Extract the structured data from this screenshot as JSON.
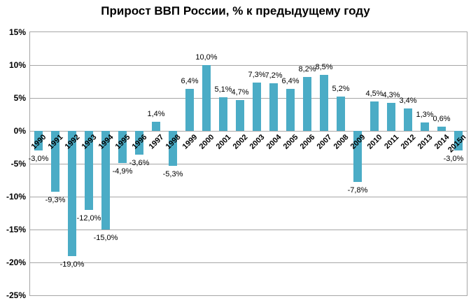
{
  "chart_data": {
    "type": "bar",
    "title": "Прирост ВВП России, % к предыдущему году",
    "categories": [
      "1990",
      "1991",
      "1992",
      "1993",
      "1994",
      "1995",
      "1996",
      "1997",
      "1998",
      "1999",
      "2000",
      "2001",
      "2002",
      "2003",
      "2004",
      "2005",
      "2006",
      "2007",
      "2008",
      "2009",
      "2010",
      "2011",
      "2012",
      "2013",
      "2014",
      "2015п"
    ],
    "values": [
      -3.0,
      -9.3,
      -19.0,
      -12.0,
      -15.0,
      -4.9,
      -3.6,
      1.4,
      -5.3,
      6.4,
      10.0,
      5.1,
      4.7,
      7.3,
      7.2,
      6.4,
      8.2,
      8.5,
      5.2,
      -7.8,
      4.5,
      4.3,
      3.4,
      1.3,
      0.6,
      -3.0
    ],
    "value_labels": [
      "-3,0%",
      "-9,3%",
      "-19,0%",
      "-12,0%",
      "-15,0%",
      "-4,9%",
      "-3,6%",
      "1,4%",
      "-5,3%",
      "6,4%",
      "10,0%",
      "5,1%",
      "4,7%",
      "7,3%",
      "7,2%",
      "6,4%",
      "8,2%",
      "8,5%",
      "5,2%",
      "-7,8%",
      "4,5%",
      "4,3%",
      "3,4%",
      "1,3%",
      "0,6%",
      "-3,0%"
    ],
    "y_ticks": [
      "15%",
      "10%",
      "5%",
      "0%",
      "-5%",
      "-10%",
      "-15%",
      "-20%",
      "-25%"
    ],
    "ylim": [
      -25,
      15
    ],
    "y_step": 5,
    "grid": true,
    "legend": "none",
    "xlabel": "",
    "ylabel": "",
    "bar_color": "#4BACC6",
    "gridline_color": "#a6a6a6"
  }
}
